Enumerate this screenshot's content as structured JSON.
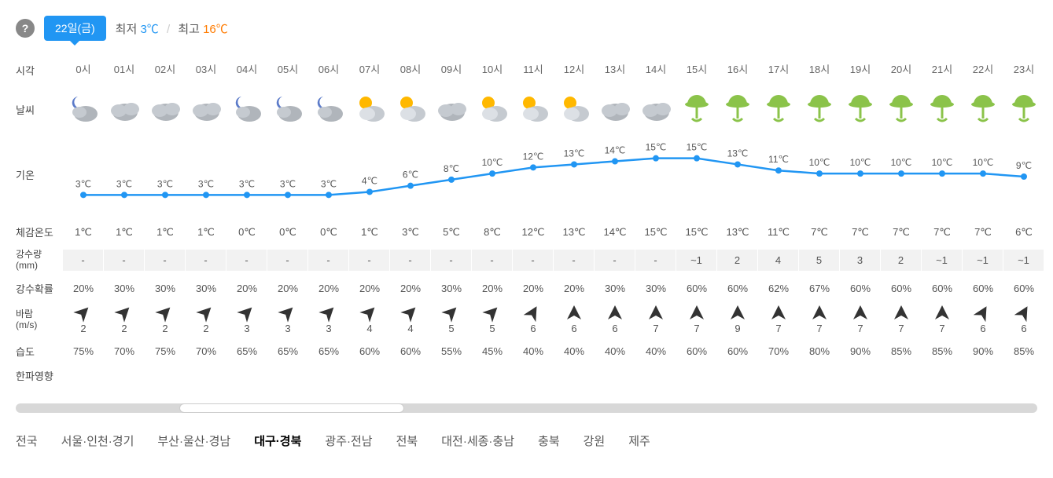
{
  "header": {
    "date_chip": "22일(금)",
    "min_label": "최저",
    "min_value": "3℃",
    "max_label": "최고",
    "max_value": "16℃"
  },
  "labels": {
    "time": "시각",
    "weather": "날씨",
    "temp": "기온",
    "feels": "체감온도",
    "precip": "강수량\n(mm)",
    "precip_prob": "강수확률",
    "wind": "바람\n(m/s)",
    "humidity": "습도",
    "coldwave": "한파영향"
  },
  "hours": [
    "0시",
    "01시",
    "02시",
    "03시",
    "04시",
    "05시",
    "06시",
    "07시",
    "08시",
    "09시",
    "10시",
    "11시",
    "12시",
    "13시",
    "14시",
    "15시",
    "16시",
    "17시",
    "18시",
    "19시",
    "20시",
    "21시",
    "22시",
    "23시"
  ],
  "weather_icons": [
    "night-cloudy",
    "cloudy",
    "cloudy",
    "cloudy",
    "night-cloudy",
    "night-cloudy",
    "night-cloudy",
    "partly-sunny",
    "partly-sunny",
    "cloudy",
    "partly-sunny",
    "partly-sunny",
    "partly-sunny",
    "cloudy",
    "cloudy",
    "rain",
    "rain",
    "rain",
    "rain",
    "rain",
    "rain",
    "rain",
    "rain",
    "rain"
  ],
  "temps": [
    3,
    3,
    3,
    3,
    3,
    3,
    3,
    4,
    6,
    8,
    10,
    12,
    13,
    14,
    15,
    15,
    13,
    11,
    10,
    10,
    10,
    10,
    10,
    9
  ],
  "temp_labels": [
    "3℃",
    "3℃",
    "3℃",
    "3℃",
    "3℃",
    "3℃",
    "3℃",
    "4℃",
    "6℃",
    "8℃",
    "10℃",
    "12℃",
    "13℃",
    "14℃",
    "15℃",
    "15℃",
    "13℃",
    "11℃",
    "10℃",
    "10℃",
    "10℃",
    "10℃",
    "10℃",
    "9℃"
  ],
  "chart": {
    "line_color": "#2196f3",
    "point_color": "#2196f3",
    "text_color": "#555",
    "min": 0,
    "max": 18
  },
  "feels": [
    "1℃",
    "1℃",
    "1℃",
    "1℃",
    "0℃",
    "0℃",
    "0℃",
    "1℃",
    "3℃",
    "5℃",
    "8℃",
    "12℃",
    "13℃",
    "14℃",
    "15℃",
    "15℃",
    "13℃",
    "11℃",
    "7℃",
    "7℃",
    "7℃",
    "7℃",
    "7℃",
    "6℃"
  ],
  "precip": [
    "-",
    "-",
    "-",
    "-",
    "-",
    "-",
    "-",
    "-",
    "-",
    "-",
    "-",
    "-",
    "-",
    "-",
    "-",
    "~1",
    "2",
    "4",
    "5",
    "3",
    "2",
    "~1",
    "~1",
    "~1"
  ],
  "precip_prob": [
    "20%",
    "30%",
    "30%",
    "30%",
    "20%",
    "20%",
    "20%",
    "20%",
    "20%",
    "30%",
    "20%",
    "20%",
    "20%",
    "30%",
    "30%",
    "60%",
    "60%",
    "62%",
    "67%",
    "60%",
    "60%",
    "60%",
    "60%",
    "60%"
  ],
  "wind_dir": [
    45,
    45,
    45,
    45,
    45,
    45,
    45,
    45,
    45,
    45,
    45,
    30,
    0,
    0,
    0,
    0,
    0,
    0,
    0,
    0,
    0,
    0,
    30,
    30
  ],
  "wind_speed": [
    "2",
    "2",
    "2",
    "2",
    "3",
    "3",
    "3",
    "4",
    "4",
    "5",
    "5",
    "6",
    "6",
    "6",
    "7",
    "7",
    "9",
    "7",
    "7",
    "7",
    "7",
    "7",
    "6",
    "6"
  ],
  "humidity": [
    "75%",
    "70%",
    "75%",
    "70%",
    "65%",
    "65%",
    "65%",
    "60%",
    "60%",
    "55%",
    "45%",
    "40%",
    "40%",
    "40%",
    "40%",
    "60%",
    "60%",
    "70%",
    "80%",
    "90%",
    "85%",
    "85%",
    "90%",
    "85%"
  ],
  "regions": [
    "전국",
    "서울·인천·경기",
    "부산·울산·경남",
    "대구·경북",
    "광주·전남",
    "전북",
    "대전·세종·충남",
    "충북",
    "강원",
    "제주"
  ],
  "active_region_index": 3
}
